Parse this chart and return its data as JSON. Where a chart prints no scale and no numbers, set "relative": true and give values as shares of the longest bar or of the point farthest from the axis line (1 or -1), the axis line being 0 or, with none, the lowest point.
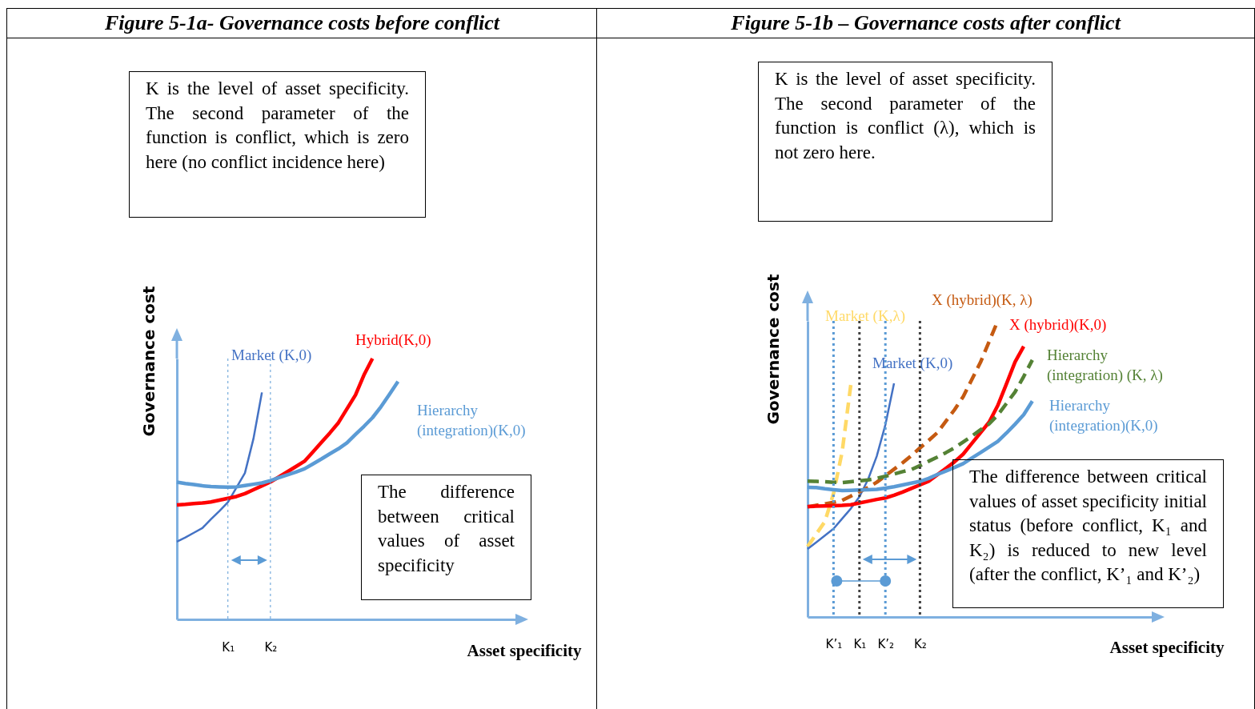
{
  "chart_data": [
    {
      "type": "line",
      "title": "Figure 5-1a- Governance costs before conflict",
      "xlabel": "Asset specificity",
      "ylabel": "Governance cost",
      "relative": true,
      "tick_labels": "x",
      "grid": false,
      "legend": false,
      "marker": "none",
      "categories": [
        null,
        null,
        null,
        null,
        null,
        null,
        "K₁",
        null,
        null,
        null,
        null,
        "K₂",
        null,
        null,
        null,
        null,
        null,
        null,
        null,
        null,
        null,
        null,
        null,
        null,
        null,
        null,
        null,
        null,
        null,
        null,
        null,
        null,
        null,
        null,
        null,
        null,
        null,
        null,
        null,
        null,
        null
      ],
      "annotations": [
        "K is the level of asset specificity. The second parameter of the function is conflict, which is zero here (no conflict incidence here)",
        "The difference between critical values of asset specificity"
      ],
      "ref_lines": [
        {
          "axis": "x",
          "value": "K₁",
          "color": "#5b9bd5",
          "line_style": "dotted"
        },
        {
          "axis": "x",
          "value": "K₂",
          "color": "#5b9bd5",
          "line_style": "dotted"
        }
      ],
      "series": [
        {
          "name": "Market (K,0)",
          "color": "#4472c4",
          "line_style": "solid",
          "values": [
            0.298,
            0.314,
            0.332,
            0.35,
            0.384,
            0.415,
            0.449,
            0.505,
            0.561,
            0.692,
            0.87,
            null,
            null,
            null,
            null,
            null,
            null,
            null,
            null,
            null,
            null,
            null,
            null,
            null,
            null,
            null,
            null,
            null,
            null,
            null,
            null,
            null,
            null,
            null,
            null,
            null,
            null,
            null,
            null,
            null,
            null
          ]
        },
        {
          "name": "Hybrid(K,0)",
          "color": "#ff0000",
          "line_style": "solid",
          "values": [
            0.439,
            0.441,
            0.444,
            0.446,
            0.45,
            0.457,
            0.464,
            0.471,
            0.482,
            0.497,
            0.512,
            0.527,
            0.546,
            0.566,
            0.586,
            0.606,
            0.642,
            0.679,
            0.715,
            0.754,
            0.807,
            0.86,
            0.937,
            1.0,
            null,
            null,
            null,
            null,
            null,
            null,
            null,
            null,
            null,
            null,
            null,
            null,
            null,
            null,
            null,
            null,
            null
          ]
        },
        {
          "name": "Hierarchy (integration)(K,0)",
          "color": "#5b9bd5",
          "line_style": "solid",
          "values": [
            0.526,
            0.521,
            0.517,
            0.512,
            0.509,
            0.508,
            0.507,
            0.508,
            0.513,
            0.518,
            0.523,
            0.532,
            0.543,
            0.554,
            0.565,
            0.577,
            0.596,
            0.615,
            0.635,
            0.654,
            0.677,
            0.709,
            0.74,
            0.773,
            0.815,
            0.863,
            0.912,
            null,
            null,
            null,
            null,
            null,
            null,
            null,
            null,
            null,
            null,
            null,
            null,
            null,
            null
          ]
        }
      ]
    },
    {
      "type": "line",
      "title": "Figure 5-1b – Governance costs after conflict",
      "xlabel": "Asset specificity",
      "ylabel": "Governance cost",
      "relative": true,
      "tick_labels": "x",
      "grid": false,
      "legend": false,
      "marker": "none",
      "categories": [
        null,
        null,
        null,
        "K’₁",
        null,
        null,
        "K₁",
        null,
        null,
        "K’₂",
        null,
        null,
        null,
        "K₂",
        null,
        null,
        null,
        null,
        null,
        null,
        null,
        null,
        null,
        null,
        null,
        null,
        null,
        null,
        null,
        null,
        null,
        null,
        null,
        null,
        null,
        null,
        null,
        null,
        null,
        null,
        null
      ],
      "annotations": [
        "K is the level of asset specificity. The second parameter of the function is conflict (λ), which is not zero here.",
        "The difference between critical values of asset specificity initial status (before conflict, K₁ and K₂) is reduced to new level (after the conflict, K’₁ and K’₂)"
      ],
      "ref_lines": [
        {
          "axis": "x",
          "value": "K’₁",
          "color": "#5b9bd5",
          "line_style": "dotted"
        },
        {
          "axis": "x",
          "value": "K₁",
          "color": "#404040",
          "line_style": "dotted"
        },
        {
          "axis": "x",
          "value": "K’₂",
          "color": "#5b9bd5",
          "line_style": "dotted"
        },
        {
          "axis": "x",
          "value": "K₂",
          "color": "#404040",
          "line_style": "dotted"
        }
      ],
      "series": [
        {
          "name": "Market (K,λ)",
          "color": "#ffd966",
          "line_style": "dashed",
          "values": [
            0.238,
            0.28,
            0.322,
            0.417,
            0.558,
            0.784,
            null,
            null,
            null,
            null,
            null,
            null,
            null,
            null,
            null,
            null,
            null,
            null,
            null,
            null,
            null,
            null,
            null,
            null,
            null,
            null,
            null,
            null,
            null,
            null,
            null,
            null,
            null,
            null,
            null,
            null,
            null,
            null,
            null,
            null,
            null
          ]
        },
        {
          "name": "Market (K,0)",
          "color": "#4472c4",
          "line_style": "solid",
          "values": [
            0.23,
            0.252,
            0.275,
            0.298,
            0.332,
            0.366,
            0.406,
            0.465,
            0.543,
            0.649,
            0.789,
            null,
            null,
            null,
            null,
            null,
            null,
            null,
            null,
            null,
            null,
            null,
            null,
            null,
            null,
            null,
            null,
            null,
            null,
            null,
            null,
            null,
            null,
            null,
            null,
            null,
            null,
            null,
            null,
            null,
            null
          ]
        },
        {
          "name": "X (hybrid)(K, λ)",
          "color": "#c55a11",
          "line_style": "dashed",
          "values": [
            0.372,
            0.377,
            0.382,
            0.387,
            0.394,
            0.408,
            0.423,
            0.437,
            0.455,
            0.477,
            0.499,
            0.521,
            0.545,
            0.571,
            0.596,
            0.622,
            0.661,
            0.7,
            0.744,
            0.802,
            0.86,
            0.93,
            1.0,
            null,
            null,
            null,
            null,
            null,
            null,
            null,
            null,
            null,
            null,
            null,
            null,
            null,
            null,
            null,
            null,
            null,
            null
          ]
        },
        {
          "name": "X (hybrid)(K,0)",
          "color": "#ff0000",
          "line_style": "solid",
          "values": [
            0.373,
            0.374,
            0.375,
            0.376,
            0.377,
            0.379,
            0.385,
            0.391,
            0.397,
            0.402,
            0.411,
            0.422,
            0.434,
            0.446,
            0.458,
            0.48,
            0.502,
            0.524,
            0.55,
            0.586,
            0.622,
            0.658,
            0.714,
            0.787,
            0.861,
            0.914,
            null,
            null,
            null,
            null,
            null,
            null,
            null,
            null,
            null,
            null,
            null,
            null,
            null,
            null,
            null
          ]
        },
        {
          "name": "Hierarchy (integration) (K, λ)",
          "color": "#548235",
          "line_style": "dashed",
          "values": [
            0.459,
            0.458,
            0.457,
            0.455,
            0.454,
            0.457,
            0.46,
            0.463,
            0.468,
            0.475,
            0.483,
            0.491,
            0.498,
            0.511,
            0.526,
            0.54,
            0.555,
            0.571,
            0.591,
            0.611,
            0.632,
            0.652,
            0.682,
            0.721,
            0.76,
            0.812,
            0.868,
            null,
            null,
            null,
            null,
            null,
            null,
            null,
            null,
            null,
            null,
            null,
            null,
            null,
            null
          ]
        },
        {
          "name": "Hierarchy (integration)(K,0)",
          "color": "#5b9bd5",
          "line_style": "solid",
          "values": [
            0.438,
            0.437,
            0.433,
            0.43,
            0.427,
            0.428,
            0.429,
            0.43,
            0.431,
            0.435,
            0.44,
            0.446,
            0.452,
            0.458,
            0.468,
            0.481,
            0.493,
            0.505,
            0.518,
            0.537,
            0.555,
            0.574,
            0.593,
            0.621,
            0.651,
            0.683,
            0.729,
            null,
            null,
            null,
            null,
            null,
            null,
            null,
            null,
            null,
            null,
            null,
            null,
            null,
            null
          ]
        }
      ]
    }
  ]
}
